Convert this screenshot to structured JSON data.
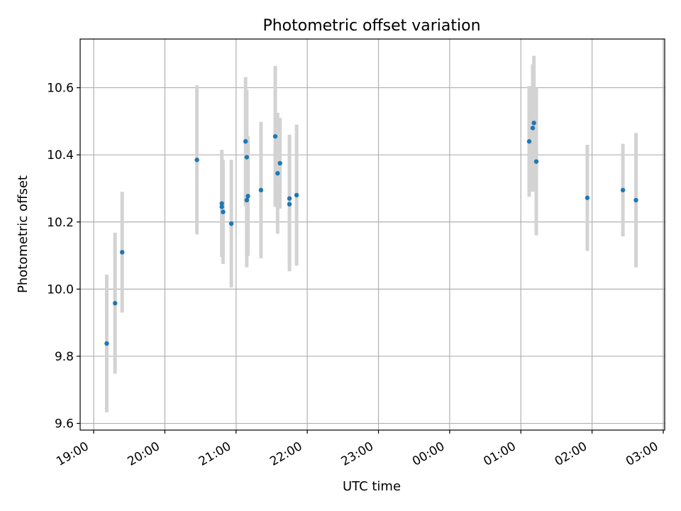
{
  "chart_data": {
    "type": "scatter",
    "title": "Photometric offset variation",
    "xlabel": "UTC time",
    "ylabel": "Photometric offset",
    "x_ticks": [
      "19:00",
      "20:00",
      "21:00",
      "22:00",
      "23:00",
      "00:00",
      "01:00",
      "02:00",
      "03:00"
    ],
    "x_tick_hours": [
      0,
      1,
      2,
      3,
      4,
      5,
      6,
      7,
      8
    ],
    "xlim_hours": [
      -0.19,
      8.02
    ],
    "y_ticks": [
      "9.6",
      "9.8",
      "10.0",
      "10.2",
      "10.4",
      "10.6"
    ],
    "y_tick_values": [
      9.6,
      9.8,
      10.0,
      10.2,
      10.4,
      10.6
    ],
    "ylim": [
      9.58,
      10.745
    ],
    "grid": true,
    "marker_color": "#1f77b4",
    "errorbar_color": "#d3d3d3",
    "points": [
      {
        "time": "19:11",
        "y": 9.838,
        "err": 0.205
      },
      {
        "time": "19:18",
        "y": 9.958,
        "err": 0.21
      },
      {
        "time": "19:24",
        "y": 10.11,
        "err": 0.18
      },
      {
        "time": "20:27",
        "y": 10.385,
        "err": 0.222
      },
      {
        "time": "20:48",
        "y": 10.255,
        "err": 0.16
      },
      {
        "time": "20:48",
        "y": 10.245,
        "err": 0.14
      },
      {
        "time": "20:49",
        "y": 10.23,
        "err": 0.155
      },
      {
        "time": "20:56",
        "y": 10.195,
        "err": 0.19
      },
      {
        "time": "21:08",
        "y": 10.44,
        "err": 0.192
      },
      {
        "time": "21:09",
        "y": 10.393,
        "err": 0.2
      },
      {
        "time": "21:09",
        "y": 10.265,
        "err": 0.2
      },
      {
        "time": "21:10",
        "y": 10.277,
        "err": 0.178
      },
      {
        "time": "21:21",
        "y": 10.295,
        "err": 0.203
      },
      {
        "time": "21:33",
        "y": 10.455,
        "err": 0.21
      },
      {
        "time": "21:35",
        "y": 10.345,
        "err": 0.18
      },
      {
        "time": "21:37",
        "y": 10.375,
        "err": 0.135
      },
      {
        "time": "21:45",
        "y": 10.27,
        "err": 0.19
      },
      {
        "time": "21:45",
        "y": 10.253,
        "err": 0.2
      },
      {
        "time": "21:51",
        "y": 10.28,
        "err": 0.21
      },
      {
        "time": "01:07",
        "y": 10.44,
        "err": 0.165
      },
      {
        "time": "01:10",
        "y": 10.48,
        "err": 0.19
      },
      {
        "time": "01:11",
        "y": 10.495,
        "err": 0.2
      },
      {
        "time": "01:13",
        "y": 10.38,
        "err": 0.22
      },
      {
        "time": "01:56",
        "y": 10.272,
        "err": 0.158
      },
      {
        "time": "02:26",
        "y": 10.295,
        "err": 0.138
      },
      {
        "time": "02:37",
        "y": 10.265,
        "err": 0.2
      }
    ]
  }
}
